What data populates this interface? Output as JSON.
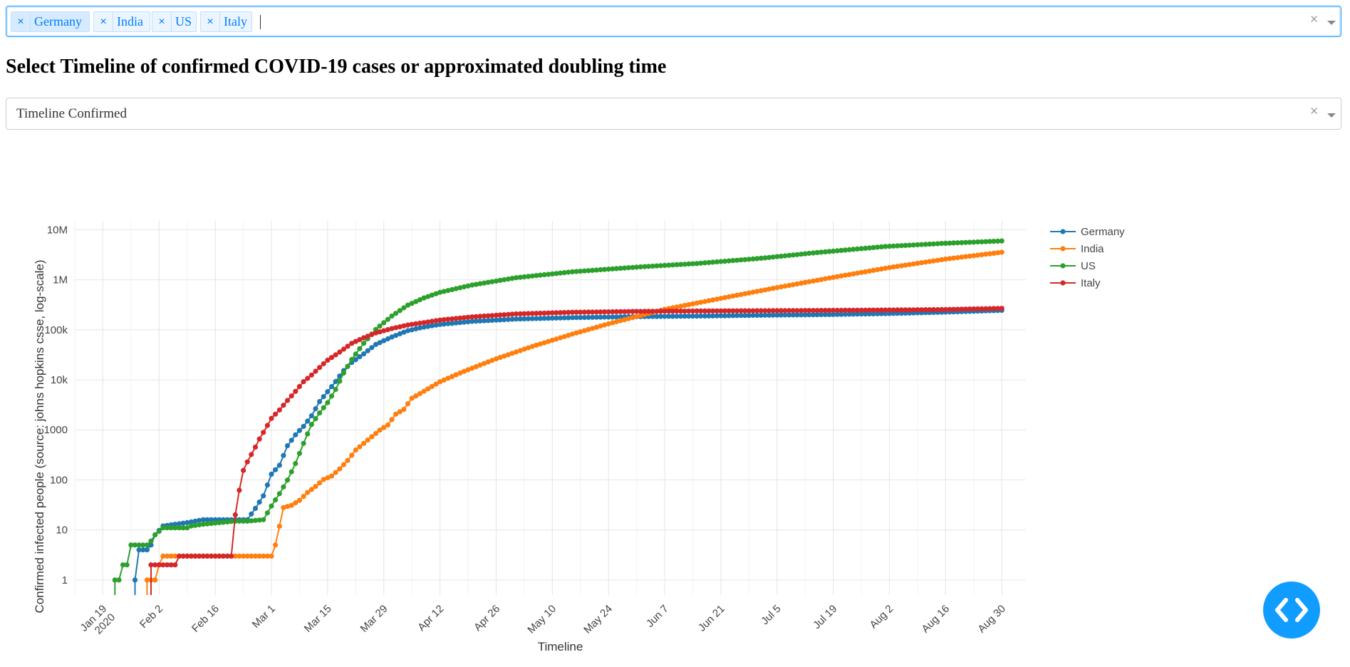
{
  "country_select": {
    "tags": [
      {
        "label": "Germany"
      },
      {
        "label": "India"
      },
      {
        "label": "US"
      },
      {
        "label": "Italy"
      }
    ],
    "clear_glyph": "×",
    "remove_glyph": "×"
  },
  "heading": "Select Timeline of confirmed COVID-19 cases or approximated doubling time",
  "timeline_select": {
    "value": "Timeline Confirmed",
    "clear_glyph": "×"
  },
  "chart_data": {
    "type": "line",
    "title": "",
    "xlabel": "Timeline",
    "ylabel": "Confirmed infected people (source: johns hopkins csse, log-scale)",
    "y_scale": "log",
    "x_ticks": [
      "Jan 19\n2020",
      "Feb 2",
      "Feb 16",
      "Mar 1",
      "Mar 15",
      "Mar 29",
      "Apr 12",
      "Apr 26",
      "May 10",
      "May 24",
      "Jun 7",
      "Jun 21",
      "Jul 5",
      "Jul 19",
      "Aug 2",
      "Aug 16",
      "Aug 30"
    ],
    "y_ticks": [
      "1",
      "10",
      "100",
      "1000",
      "10k",
      "100k",
      "1M",
      "10M"
    ],
    "xlim": [
      "2020-01-12",
      "2020-09-05"
    ],
    "ylim": [
      0.5,
      15000000
    ],
    "grid": true,
    "legend_position": "right",
    "series": [
      {
        "name": "Germany",
        "color": "#1f77b4",
        "points": [
          [
            "2020-01-27",
            1
          ],
          [
            "2020-01-28",
            4
          ],
          [
            "2020-01-30",
            4
          ],
          [
            "2020-01-31",
            5
          ],
          [
            "2020-02-01",
            8
          ],
          [
            "2020-02-03",
            12
          ],
          [
            "2020-02-09",
            14
          ],
          [
            "2020-02-13",
            16
          ],
          [
            "2020-02-24",
            16
          ],
          [
            "2020-02-26",
            27
          ],
          [
            "2020-02-28",
            48
          ],
          [
            "2020-03-01",
            130
          ],
          [
            "2020-03-03",
            196
          ],
          [
            "2020-03-05",
            482
          ],
          [
            "2020-03-07",
            795
          ],
          [
            "2020-03-09",
            1176
          ],
          [
            "2020-03-11",
            1908
          ],
          [
            "2020-03-13",
            3675
          ],
          [
            "2020-03-15",
            5795
          ],
          [
            "2020-03-17",
            9257
          ],
          [
            "2020-03-19",
            15320
          ],
          [
            "2020-03-21",
            22213
          ],
          [
            "2020-03-24",
            32986
          ],
          [
            "2020-03-27",
            50871
          ],
          [
            "2020-03-31",
            71808
          ],
          [
            "2020-04-04",
            96092
          ],
          [
            "2020-04-08",
            113296
          ],
          [
            "2020-04-12",
            127854
          ],
          [
            "2020-04-20",
            147065
          ],
          [
            "2020-05-01",
            163860
          ],
          [
            "2020-05-15",
            174975
          ],
          [
            "2020-06-01",
            183494
          ],
          [
            "2020-06-15",
            187671
          ],
          [
            "2020-07-01",
            195418
          ],
          [
            "2020-07-15",
            200260
          ],
          [
            "2020-08-01",
            210402
          ],
          [
            "2020-08-15",
            224014
          ],
          [
            "2020-08-30",
            244802
          ]
        ]
      },
      {
        "name": "India",
        "color": "#ff7f0e",
        "points": [
          [
            "2020-01-30",
            1
          ],
          [
            "2020-01-31",
            1
          ],
          [
            "2020-02-01",
            1
          ],
          [
            "2020-02-02",
            2
          ],
          [
            "2020-02-03",
            3
          ],
          [
            "2020-03-01",
            3
          ],
          [
            "2020-03-02",
            5
          ],
          [
            "2020-03-04",
            28
          ],
          [
            "2020-03-06",
            31
          ],
          [
            "2020-03-08",
            39
          ],
          [
            "2020-03-10",
            56
          ],
          [
            "2020-03-12",
            74
          ],
          [
            "2020-03-14",
            102
          ],
          [
            "2020-03-16",
            119
          ],
          [
            "2020-03-18",
            166
          ],
          [
            "2020-03-20",
            244
          ],
          [
            "2020-03-22",
            396
          ],
          [
            "2020-03-24",
            536
          ],
          [
            "2020-03-26",
            727
          ],
          [
            "2020-03-28",
            987
          ],
          [
            "2020-03-30",
            1251
          ],
          [
            "2020-04-01",
            2062
          ],
          [
            "2020-04-03",
            2567
          ],
          [
            "2020-04-05",
            4289
          ],
          [
            "2020-04-08",
            5916
          ],
          [
            "2020-04-12",
            9152
          ],
          [
            "2020-04-18",
            14792
          ],
          [
            "2020-04-26",
            26283
          ],
          [
            "2020-05-05",
            46437
          ],
          [
            "2020-05-15",
            81997
          ],
          [
            "2020-05-24",
            131868
          ],
          [
            "2020-06-07",
            256611
          ],
          [
            "2020-06-21",
            425282
          ],
          [
            "2020-07-05",
            697413
          ],
          [
            "2020-07-19",
            1118043
          ],
          [
            "2020-08-02",
            1750723
          ],
          [
            "2020-08-16",
            2589682
          ],
          [
            "2020-08-30",
            3542733
          ]
        ]
      },
      {
        "name": "US",
        "color": "#2ca02c",
        "points": [
          [
            "2020-01-22",
            1
          ],
          [
            "2020-01-23",
            1
          ],
          [
            "2020-01-24",
            2
          ],
          [
            "2020-01-25",
            2
          ],
          [
            "2020-01-26",
            5
          ],
          [
            "2020-01-30",
            5
          ],
          [
            "2020-01-31",
            6
          ],
          [
            "2020-02-01",
            8
          ],
          [
            "2020-02-03",
            11
          ],
          [
            "2020-02-09",
            11
          ],
          [
            "2020-02-10",
            12
          ],
          [
            "2020-02-13",
            13
          ],
          [
            "2020-02-21",
            15
          ],
          [
            "2020-02-24",
            15
          ],
          [
            "2020-02-28",
            16
          ],
          [
            "2020-03-01",
            30
          ],
          [
            "2020-03-03",
            53
          ],
          [
            "2020-03-05",
            99
          ],
          [
            "2020-03-07",
            213
          ],
          [
            "2020-03-09",
            537
          ],
          [
            "2020-03-11",
            1281
          ],
          [
            "2020-03-13",
            2179
          ],
          [
            "2020-03-15",
            3499
          ],
          [
            "2020-03-17",
            6421
          ],
          [
            "2020-03-19",
            13677
          ],
          [
            "2020-03-21",
            25489
          ],
          [
            "2020-03-24",
            53740
          ],
          [
            "2020-03-27",
            101657
          ],
          [
            "2020-03-31",
            188172
          ],
          [
            "2020-04-04",
            311357
          ],
          [
            "2020-04-08",
            432438
          ],
          [
            "2020-04-12",
            560433
          ],
          [
            "2020-04-20",
            784326
          ],
          [
            "2020-05-01",
            1099275
          ],
          [
            "2020-05-15",
            1442824
          ],
          [
            "2020-06-01",
            1811277
          ],
          [
            "2020-06-15",
            2114026
          ],
          [
            "2020-07-01",
            2686480
          ],
          [
            "2020-07-15",
            3499771
          ],
          [
            "2020-08-01",
            4620592
          ],
          [
            "2020-08-15",
            5313252
          ],
          [
            "2020-08-30",
            5961094
          ]
        ]
      },
      {
        "name": "Italy",
        "color": "#d62728",
        "points": [
          [
            "2020-01-31",
            2
          ],
          [
            "2020-02-06",
            2
          ],
          [
            "2020-02-07",
            3
          ],
          [
            "2020-02-20",
            3
          ],
          [
            "2020-02-21",
            20
          ],
          [
            "2020-02-22",
            62
          ],
          [
            "2020-02-23",
            155
          ],
          [
            "2020-02-24",
            229
          ],
          [
            "2020-02-25",
            322
          ],
          [
            "2020-02-26",
            453
          ],
          [
            "2020-02-27",
            655
          ],
          [
            "2020-02-28",
            888
          ],
          [
            "2020-03-01",
            1694
          ],
          [
            "2020-03-03",
            2502
          ],
          [
            "2020-03-05",
            3858
          ],
          [
            "2020-03-07",
            5883
          ],
          [
            "2020-03-09",
            9172
          ],
          [
            "2020-03-11",
            12462
          ],
          [
            "2020-03-13",
            17660
          ],
          [
            "2020-03-15",
            24747
          ],
          [
            "2020-03-17",
            31506
          ],
          [
            "2020-03-19",
            41035
          ],
          [
            "2020-03-21",
            53578
          ],
          [
            "2020-03-24",
            69176
          ],
          [
            "2020-03-27",
            86498
          ],
          [
            "2020-03-31",
            105792
          ],
          [
            "2020-04-04",
            124632
          ],
          [
            "2020-04-08",
            139422
          ],
          [
            "2020-04-12",
            156363
          ],
          [
            "2020-04-20",
            181228
          ],
          [
            "2020-05-01",
            207428
          ],
          [
            "2020-05-15",
            223885
          ],
          [
            "2020-06-01",
            233197
          ],
          [
            "2020-06-15",
            237290
          ],
          [
            "2020-07-01",
            240760
          ],
          [
            "2020-07-15",
            243506
          ],
          [
            "2020-08-01",
            248070
          ],
          [
            "2020-08-15",
            253438
          ],
          [
            "2020-08-30",
            268218
          ]
        ]
      }
    ]
  }
}
